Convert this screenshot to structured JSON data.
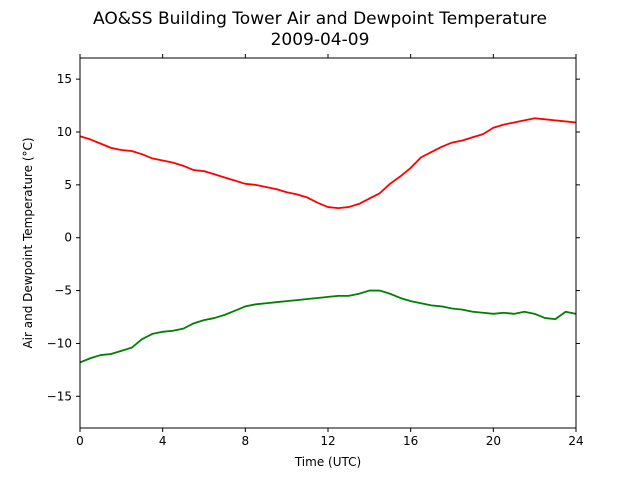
{
  "chart_data": {
    "type": "line",
    "title": "AO&SS Building Tower Air and Dewpoint Temperature",
    "subtitle": "2009-04-09",
    "xlabel": "Time (UTC)",
    "ylabel": "Air and Dewpoint Temperature (°C)",
    "xlim": [
      0,
      24
    ],
    "ylim": [
      -18,
      17
    ],
    "xticks": [
      0,
      4,
      8,
      12,
      16,
      20,
      24
    ],
    "yticks": [
      -15,
      -10,
      -5,
      0,
      5,
      10,
      15
    ],
    "grid": false,
    "legend": "none",
    "series": [
      {
        "color": "#ff0000",
        "x": [
          0,
          0.5,
          1,
          1.5,
          2,
          2.5,
          3,
          3.5,
          4,
          4.5,
          5,
          5.5,
          6,
          6.5,
          7,
          7.5,
          8,
          8.5,
          9,
          9.5,
          10,
          10.5,
          11,
          11.5,
          12,
          12.5,
          13,
          13.5,
          14,
          14.5,
          15,
          15.5,
          16,
          16.5,
          17,
          17.5,
          18,
          18.5,
          19,
          19.5,
          20,
          20.5,
          21,
          21.5,
          22,
          22.5,
          23,
          23.5,
          24
        ],
        "y": [
          9.6,
          9.3,
          8.9,
          8.5,
          8.3,
          8.2,
          7.9,
          7.5,
          7.3,
          7.1,
          6.8,
          6.4,
          6.3,
          6.0,
          5.7,
          5.4,
          5.1,
          5.0,
          4.8,
          4.6,
          4.3,
          4.1,
          3.8,
          3.3,
          2.9,
          2.8,
          2.9,
          3.2,
          3.7,
          4.2,
          5.1,
          5.8,
          6.6,
          7.6,
          8.1,
          8.6,
          9.0,
          9.2,
          9.5,
          9.8,
          10.4,
          10.7,
          10.9,
          11.1,
          11.3,
          11.2,
          11.1,
          11.0,
          10.9
        ]
      },
      {
        "color": "#008000",
        "x": [
          0,
          0.5,
          1,
          1.5,
          2,
          2.5,
          3,
          3.5,
          4,
          4.5,
          5,
          5.5,
          6,
          6.5,
          7,
          7.5,
          8,
          8.5,
          9,
          9.5,
          10,
          10.5,
          11,
          11.5,
          12,
          12.5,
          13,
          13.5,
          14,
          14.5,
          15,
          15.5,
          16,
          16.5,
          17,
          17.5,
          18,
          18.5,
          19,
          19.5,
          20,
          20.5,
          21,
          21.5,
          22,
          22.5,
          23,
          23.5,
          24
        ],
        "y": [
          -11.8,
          -11.4,
          -11.1,
          -11.0,
          -10.7,
          -10.4,
          -9.6,
          -9.1,
          -8.9,
          -8.8,
          -8.6,
          -8.1,
          -7.8,
          -7.6,
          -7.3,
          -6.9,
          -6.5,
          -6.3,
          -6.2,
          -6.1,
          -6.0,
          -5.9,
          -5.8,
          -5.7,
          -5.6,
          -5.5,
          -5.5,
          -5.3,
          -5.0,
          -5.0,
          -5.3,
          -5.7,
          -6.0,
          -6.2,
          -6.4,
          -6.5,
          -6.7,
          -6.8,
          -7.0,
          -7.1,
          -7.2,
          -7.1,
          -7.2,
          -7.0,
          -7.2,
          -7.6,
          -7.7,
          -7.0,
          -7.2
        ]
      }
    ]
  }
}
